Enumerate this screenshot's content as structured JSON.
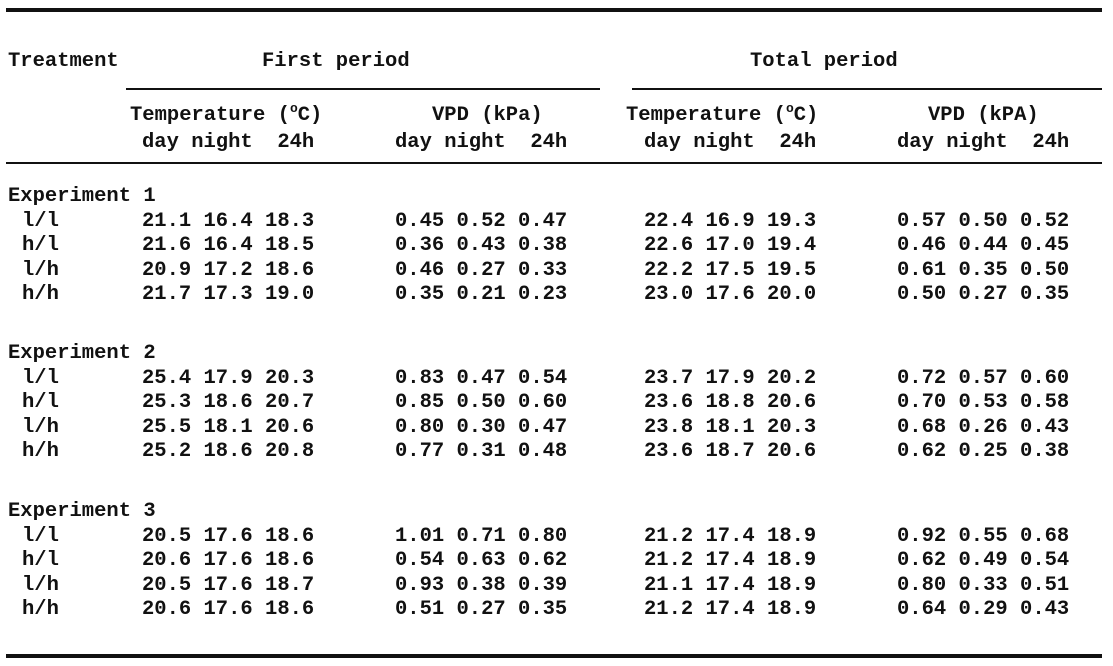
{
  "header": {
    "treatment": "Treatment",
    "first_period": "First period",
    "total_period": "Total period",
    "temp_label_a": "Temperature (",
    "temp_sup": "o",
    "temp_label_b": "C)",
    "vpd_first": "VPD (kPa)",
    "vpd_total": "VPD (kPA)",
    "subcols": "day night  24h"
  },
  "experiments": [
    {
      "label": "Experiment 1",
      "rows": [
        {
          "treatment": "l/l",
          "values": [
            "21.1 16.4 18.3",
            "0.45 0.52 0.47",
            "22.4 16.9 19.3",
            "0.57 0.50 0.52"
          ]
        },
        {
          "treatment": "h/l",
          "values": [
            "21.6 16.4 18.5",
            "0.36 0.43 0.38",
            "22.6 17.0 19.4",
            "0.46 0.44 0.45"
          ]
        },
        {
          "treatment": "l/h",
          "values": [
            "20.9 17.2 18.6",
            "0.46 0.27 0.33",
            "22.2 17.5 19.5",
            "0.61 0.35 0.50"
          ]
        },
        {
          "treatment": "h/h",
          "values": [
            "21.7 17.3 19.0",
            "0.35 0.21 0.23",
            "23.0 17.6 20.0",
            "0.50 0.27 0.35"
          ]
        }
      ]
    },
    {
      "label": "Experiment 2",
      "rows": [
        {
          "treatment": "l/l",
          "values": [
            "25.4 17.9 20.3",
            "0.83 0.47 0.54",
            "23.7 17.9 20.2",
            "0.72 0.57 0.60"
          ]
        },
        {
          "treatment": "h/l",
          "values": [
            "25.3 18.6 20.7",
            "0.85 0.50 0.60",
            "23.6 18.8 20.6",
            "0.70 0.53 0.58"
          ]
        },
        {
          "treatment": "l/h",
          "values": [
            "25.5 18.1 20.6",
            "0.80 0.30 0.47",
            "23.8 18.1 20.3",
            "0.68 0.26 0.43"
          ]
        },
        {
          "treatment": "h/h",
          "values": [
            "25.2 18.6 20.8",
            "0.77 0.31 0.48",
            "23.6 18.7 20.6",
            "0.62 0.25 0.38"
          ]
        }
      ]
    },
    {
      "label": "Experiment 3",
      "rows": [
        {
          "treatment": "l/l",
          "values": [
            "20.5 17.6 18.6",
            "1.01 0.71 0.80",
            "21.2 17.4 18.9",
            "0.92 0.55 0.68"
          ]
        },
        {
          "treatment": "h/l",
          "values": [
            "20.6 17.6 18.6",
            "0.54 0.63 0.62",
            "21.2 17.4 18.9",
            "0.62 0.49 0.54"
          ]
        },
        {
          "treatment": "l/h",
          "values": [
            "20.5 17.6 18.7",
            "0.93 0.38 0.39",
            "21.1 17.4 18.9",
            "0.80 0.33 0.51"
          ]
        },
        {
          "treatment": "h/h",
          "values": [
            "20.6 17.6 18.6",
            "0.51 0.27 0.35",
            "21.2 17.4 18.9",
            "0.64 0.29 0.43"
          ]
        }
      ]
    }
  ]
}
